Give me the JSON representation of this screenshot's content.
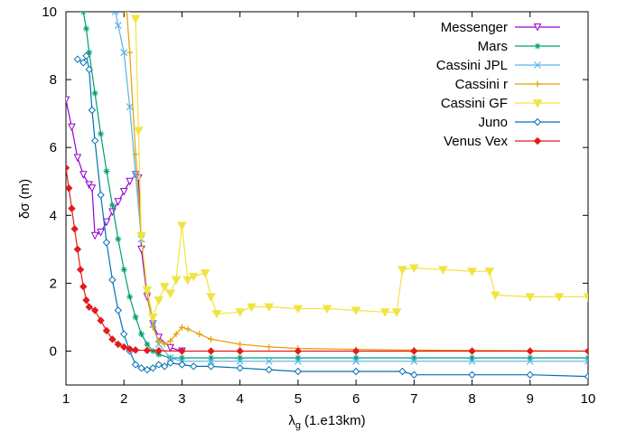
{
  "chart_data": {
    "type": "line",
    "title": "",
    "xlabel": "λ",
    "xlabel_sub": "g",
    "xlabel_unit": "(1.e13km)",
    "ylabel": "δσ (m)",
    "xlim": [
      1,
      10
    ],
    "ylim": [
      -1,
      10
    ],
    "xticks": [
      1,
      2,
      3,
      4,
      5,
      6,
      7,
      8,
      9,
      10
    ],
    "yticks": [
      0,
      2,
      4,
      6,
      8,
      10
    ],
    "grid": false,
    "legend_position": "top-right",
    "series": [
      {
        "name": "Messenger",
        "color": "#9400d3",
        "marker": "triangle-down-open",
        "x": [
          1.0,
          1.1,
          1.2,
          1.3,
          1.4,
          1.45,
          1.5,
          1.6,
          1.7,
          1.8,
          1.9,
          2.0,
          2.1,
          2.2,
          2.25,
          2.3,
          2.4,
          2.5,
          2.6,
          2.8,
          3.0
        ],
        "y": [
          7.4,
          6.6,
          5.7,
          5.2,
          4.9,
          4.8,
          3.4,
          3.5,
          3.8,
          4.1,
          4.4,
          4.7,
          5.0,
          5.2,
          5.1,
          3.0,
          1.6,
          0.8,
          0.4,
          0.1,
          0.0
        ]
      },
      {
        "name": "Mars",
        "color": "#009e73",
        "marker": "star",
        "x": [
          1.3,
          1.35,
          1.4,
          1.5,
          1.6,
          1.7,
          1.8,
          1.9,
          2.0,
          2.1,
          2.2,
          2.3,
          2.4,
          2.5,
          2.6,
          2.8,
          3.0,
          3.5,
          4.0,
          5.0,
          6.0,
          7.0,
          8.0,
          9.0,
          10.0
        ],
        "y": [
          10.0,
          9.5,
          8.8,
          7.6,
          6.4,
          5.3,
          4.3,
          3.3,
          2.4,
          1.6,
          1.0,
          0.5,
          0.2,
          0.0,
          -0.1,
          -0.2,
          -0.2,
          -0.2,
          -0.2,
          -0.2,
          -0.2,
          -0.2,
          -0.2,
          -0.2,
          -0.2
        ]
      },
      {
        "name": "Cassini JPL",
        "color": "#56b4e9",
        "marker": "x",
        "x": [
          1.85,
          1.9,
          2.0,
          2.1,
          2.2,
          2.3,
          2.4,
          2.5,
          2.6,
          2.8,
          3.0,
          3.5,
          4.0,
          4.5,
          5.0,
          6.0,
          7.0,
          8.0,
          9.0,
          10.0
        ],
        "y": [
          10.0,
          9.6,
          8.8,
          7.2,
          5.2,
          3.3,
          1.8,
          0.8,
          0.2,
          -0.2,
          -0.3,
          -0.3,
          -0.3,
          -0.3,
          -0.3,
          -0.3,
          -0.3,
          -0.3,
          -0.3,
          -0.3
        ]
      },
      {
        "name": "Cassini r",
        "color": "#e69f00",
        "marker": "plus",
        "x": [
          2.05,
          2.1,
          2.2,
          2.3,
          2.4,
          2.5,
          2.6,
          2.7,
          2.8,
          2.9,
          3.0,
          3.1,
          3.3,
          3.5,
          4.0,
          4.5,
          5.0,
          6.0,
          7.0,
          8.0,
          9.0,
          10.0
        ],
        "y": [
          10.0,
          8.8,
          5.8,
          3.4,
          1.7,
          0.7,
          0.3,
          0.2,
          0.3,
          0.5,
          0.7,
          0.65,
          0.5,
          0.35,
          0.2,
          0.12,
          0.08,
          0.05,
          0.03,
          0.02,
          0.01,
          0.0
        ]
      },
      {
        "name": "Cassini GF",
        "color": "#f0e442",
        "marker": "triangle-down-filled",
        "x": [
          2.2,
          2.25,
          2.3,
          2.4,
          2.5,
          2.6,
          2.7,
          2.8,
          2.9,
          3.0,
          3.1,
          3.2,
          3.4,
          3.5,
          3.6,
          4.0,
          4.2,
          4.5,
          5.0,
          5.5,
          6.0,
          6.5,
          6.7,
          6.8,
          7.0,
          7.5,
          8.0,
          8.3,
          8.4,
          9.0,
          9.5,
          10.0
        ],
        "y": [
          9.8,
          6.5,
          3.4,
          1.8,
          1.0,
          1.5,
          1.9,
          1.7,
          2.1,
          3.7,
          2.1,
          2.2,
          2.3,
          1.6,
          1.1,
          1.15,
          1.3,
          1.3,
          1.25,
          1.25,
          1.2,
          1.15,
          1.15,
          2.4,
          2.45,
          2.4,
          2.35,
          2.35,
          1.65,
          1.6,
          1.6,
          1.6
        ]
      },
      {
        "name": "Juno",
        "color": "#0072b2",
        "marker": "diamond-open",
        "x": [
          1.2,
          1.3,
          1.35,
          1.4,
          1.45,
          1.5,
          1.6,
          1.7,
          1.8,
          1.9,
          2.0,
          2.1,
          2.2,
          2.3,
          2.4,
          2.5,
          2.6,
          2.7,
          2.8,
          3.0,
          3.2,
          3.5,
          4.0,
          4.5,
          5.0,
          6.0,
          6.8,
          7.0,
          8.0,
          9.0,
          10.0
        ],
        "y": [
          8.6,
          8.5,
          8.7,
          8.3,
          7.1,
          6.2,
          4.6,
          3.2,
          2.1,
          1.2,
          0.5,
          0.0,
          -0.4,
          -0.5,
          -0.55,
          -0.5,
          -0.4,
          -0.45,
          -0.35,
          -0.4,
          -0.45,
          -0.45,
          -0.5,
          -0.55,
          -0.6,
          -0.6,
          -0.6,
          -0.7,
          -0.7,
          -0.7,
          -0.75
        ]
      },
      {
        "name": "Venus Vex",
        "color": "#e41a1c",
        "marker": "diamond-filled",
        "x": [
          1.0,
          1.05,
          1.1,
          1.15,
          1.2,
          1.25,
          1.3,
          1.35,
          1.4,
          1.5,
          1.6,
          1.7,
          1.8,
          1.9,
          2.0,
          2.1,
          2.2,
          2.4,
          2.6,
          3.0,
          3.5,
          4.0,
          5.0,
          6.0,
          7.0,
          8.0,
          9.0,
          10.0
        ],
        "y": [
          5.4,
          4.8,
          4.2,
          3.6,
          3.0,
          2.4,
          1.9,
          1.5,
          1.3,
          1.2,
          0.9,
          0.6,
          0.35,
          0.2,
          0.12,
          0.06,
          0.03,
          0.02,
          0.01,
          0.0,
          0.0,
          0.0,
          0.0,
          0.0,
          0.0,
          0.0,
          0.0,
          0.0
        ]
      }
    ]
  }
}
